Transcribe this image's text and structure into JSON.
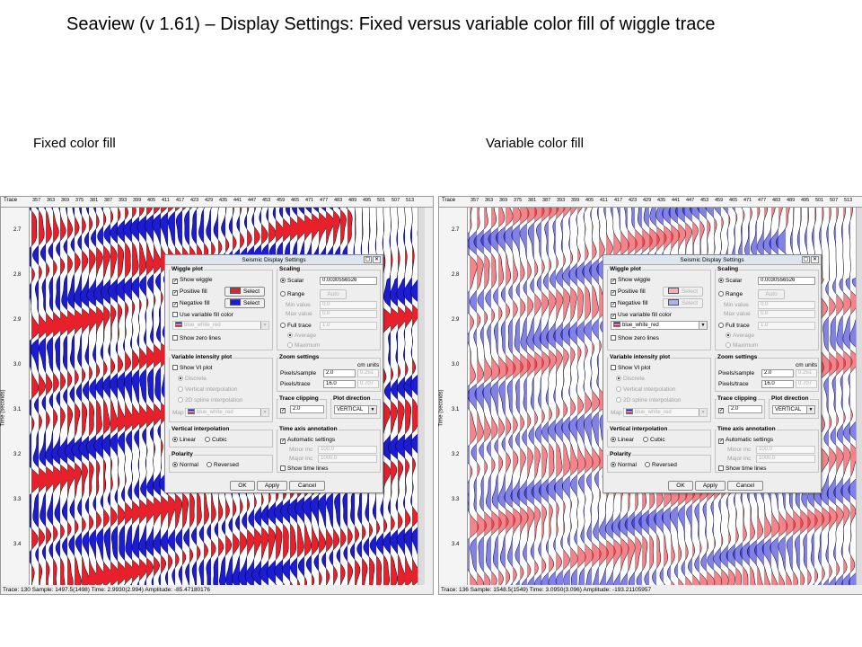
{
  "slide": {
    "title": "Seaview (v 1.61) – Display Settings: Fixed versus variable color fill of wiggle trace"
  },
  "colors": {
    "positive": "#e8202c",
    "negative": "#1c1cd0",
    "wiggle": "#000000"
  },
  "axes": {
    "trace_label": "Trace",
    "trace_ticks": [
      "357",
      "363",
      "369",
      "375",
      "381",
      "387",
      "393",
      "399",
      "405",
      "411",
      "417",
      "423",
      "429",
      "435",
      "441",
      "447",
      "453",
      "459",
      "465",
      "471",
      "477",
      "483",
      "489",
      "495",
      "501",
      "507",
      "513"
    ],
    "time_label": "Time (seconds)",
    "time_ticks": [
      "2.7",
      "2.8",
      "2.9",
      "3.0",
      "3.1",
      "3.2",
      "3.3",
      "3.4"
    ]
  },
  "panels": [
    {
      "caption": "Fixed color fill",
      "fill_mode": "fixed",
      "status": "Trace: 130   Sample: 1497.5(1498)   Time: 2.9930(2.994)   Amplitude: -85.47180176",
      "settings": {
        "use_variable_fill_checked": false,
        "variable_fill_enabled": false
      }
    },
    {
      "caption": "Variable color fill",
      "fill_mode": "variable",
      "status": "Trace: 136   Sample: 1548.5(1549)   Time: 3.0950(3.096)   Amplitude: -193.21105957",
      "settings": {
        "use_variable_fill_checked": true,
        "variable_fill_enabled": true
      }
    }
  ],
  "dialog": {
    "title": "Seismic Display Settings",
    "win_buttons": [
      "▢",
      "✕"
    ],
    "wiggle": {
      "title": "Wiggle plot",
      "show_wiggle": "Show wiggle",
      "positive_fill": "Positive fill",
      "negative_fill": "Negative fill",
      "select": "Select",
      "use_variable": "Use variable fill color",
      "map_name": "blue_white_red",
      "show_zero": "Show zero lines"
    },
    "scaling": {
      "title": "Scaling",
      "scalar": "Scalar",
      "scalar_value": "0.0030556526",
      "range": "Range",
      "auto": "Auto",
      "min_value": "Min value",
      "min_val": "0.0",
      "max_value": "Max value",
      "max_val": "0.0",
      "full_trace": "Full trace",
      "full_trace_val": "1.0",
      "average": "Average",
      "maximum": "Maximum"
    },
    "vi": {
      "title": "Variable intensity plot",
      "show_vi": "Show VI plot",
      "discrete": "Discrete",
      "vertical": "Vertical interpolation",
      "spline": "2D spline interpolation",
      "map_label": "Map",
      "map_name": "blue_white_red"
    },
    "zoom": {
      "title": "Zoom settings",
      "cm_units": "cm units",
      "pixels_sample": "Pixels/sample",
      "ps_value": "2.0",
      "ps_cm": "0.251",
      "pixels_trace": "Pixels/trace",
      "pt_value": "16.0",
      "pt_cm": "0.707"
    },
    "clipping": {
      "title": "Trace clipping",
      "value": "2.0"
    },
    "direction": {
      "title": "Plot direction",
      "value": "VERTICAL"
    },
    "interp": {
      "title": "Vertical interpolation",
      "linear": "Linear",
      "cubic": "Cubic"
    },
    "time_axis": {
      "title": "Time axis annotation",
      "auto": "Automatic settings",
      "minor": "Minor inc",
      "minor_val": "100.0",
      "major": "Major inc",
      "major_val": "1000.0",
      "show_lines": "Show time lines"
    },
    "polarity": {
      "title": "Polarity",
      "normal": "Normal",
      "reversed": "Reversed"
    },
    "buttons": {
      "ok": "OK",
      "apply": "Apply",
      "cancel": "Cancel"
    }
  }
}
